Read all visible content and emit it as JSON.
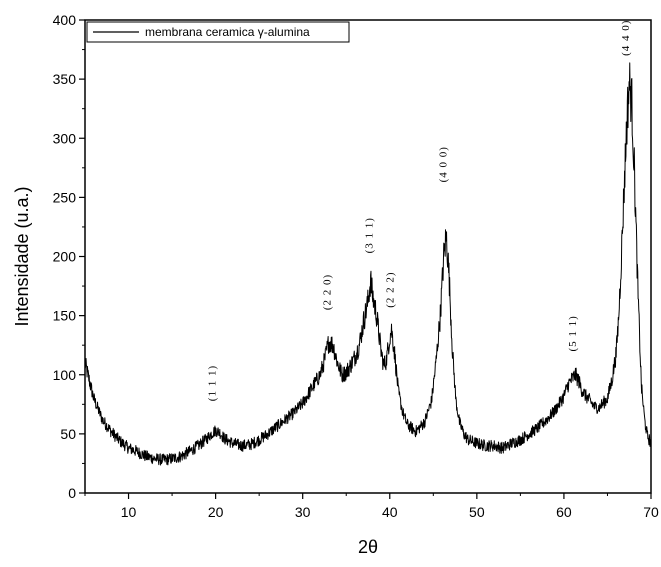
{
  "chart_data": {
    "type": "line",
    "xlabel": "2θ",
    "ylabel": "Intensidade (u.a.)",
    "xlim": [
      5,
      70
    ],
    "ylim": [
      0,
      400
    ],
    "x_ticks": [
      10,
      20,
      30,
      40,
      50,
      60,
      70
    ],
    "y_ticks": [
      0,
      50,
      100,
      150,
      200,
      250,
      300,
      350,
      400
    ],
    "grid": false,
    "legend": {
      "position": "top-left",
      "entries": [
        "membrana ceramica γ-alumina"
      ]
    },
    "series": [
      {
        "name": "membrana ceramica γ-alumina",
        "color": "#000000",
        "x": [
          5,
          5.5,
          6,
          7,
          8,
          9,
          10,
          11,
          12,
          13,
          14,
          15,
          16,
          17,
          18,
          19,
          19.5,
          20,
          20.5,
          21,
          22,
          23,
          24,
          25,
          26,
          27,
          28,
          29,
          30,
          31,
          32,
          32.5,
          33,
          33.5,
          34,
          34.5,
          35,
          35.5,
          36,
          36.5,
          37,
          37.5,
          37.8,
          38,
          38.5,
          39,
          39.3,
          39.6,
          40,
          40.2,
          40.5,
          41,
          41.5,
          42,
          43,
          44,
          44.8,
          45.3,
          45.8,
          46.2,
          46.5,
          46.8,
          47.2,
          47.6,
          48,
          48.5,
          49,
          50,
          51,
          52,
          53,
          54,
          55,
          56,
          57,
          58,
          59,
          60,
          60.5,
          61,
          61.3,
          61.7,
          62,
          62.5,
          63,
          63.5,
          64,
          65,
          65.5,
          66,
          66.3,
          66.6,
          66.9,
          67.2,
          67.5,
          67.8,
          68.1,
          68.5,
          68.9,
          69.3,
          69.6,
          70
        ],
        "y": [
          110,
          95,
          80,
          62,
          52,
          44,
          38,
          35,
          31,
          29,
          28,
          29,
          31,
          35,
          40,
          46,
          50,
          53,
          51,
          46,
          42,
          40,
          41,
          45,
          50,
          56,
          62,
          68,
          76,
          88,
          100,
          112,
          128,
          125,
          110,
          100,
          102,
          108,
          115,
          125,
          145,
          162,
          180,
          168,
          150,
          120,
          108,
          112,
          132,
          138,
          122,
          85,
          68,
          58,
          52,
          60,
          78,
          110,
          150,
          200,
          218,
          185,
          120,
          78,
          60,
          50,
          45,
          42,
          40,
          40,
          38,
          42,
          45,
          50,
          55,
          62,
          70,
          82,
          92,
          97,
          100,
          95,
          88,
          82,
          78,
          73,
          72,
          80,
          95,
          118,
          150,
          200,
          255,
          310,
          348,
          330,
          270,
          170,
          90,
          60,
          48,
          42
        ]
      }
    ],
    "annotations": [
      {
        "text": "(1 1 1)",
        "x": 20.0,
        "y": 93
      },
      {
        "text": "(2 2 0)",
        "x": 33.2,
        "y": 170
      },
      {
        "text": "(3 1 1)",
        "x": 38.0,
        "y": 218
      },
      {
        "text": "(2 2 2)",
        "x": 40.4,
        "y": 172
      },
      {
        "text": "(4 0 0)",
        "x": 46.5,
        "y": 278
      },
      {
        "text": "(5 1 1)",
        "x": 61.4,
        "y": 135
      },
      {
        "text": "(4 4 0)",
        "x": 67.5,
        "y": 385
      }
    ]
  }
}
